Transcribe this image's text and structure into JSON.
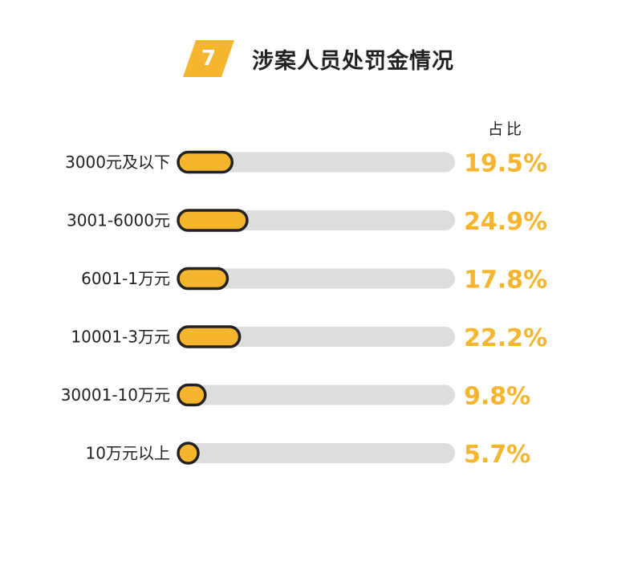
{
  "header": {
    "badge_number": "7",
    "title": "涉案人员处罚金情况"
  },
  "column_header": "占比",
  "colors": {
    "accent": "#F5B52E",
    "track": "#DDDDDD",
    "outline": "#222222",
    "text": "#222222"
  },
  "chart_data": {
    "type": "bar",
    "orientation": "horizontal",
    "title": "涉案人员处罚金情况",
    "categories": [
      "3000元及以下",
      "3001-6000元",
      "6001-1万元",
      "10001-3万元",
      "30001-10万元",
      "10万元以上"
    ],
    "values": [
      19.5,
      24.9,
      17.8,
      22.2,
      9.8,
      5.7
    ],
    "value_labels": [
      "19.5%",
      "24.9%",
      "17.8%",
      "22.2%",
      "9.8%",
      "5.7%"
    ],
    "unit": "%",
    "xlim": [
      0,
      100
    ],
    "grid": false,
    "legend": "none"
  }
}
